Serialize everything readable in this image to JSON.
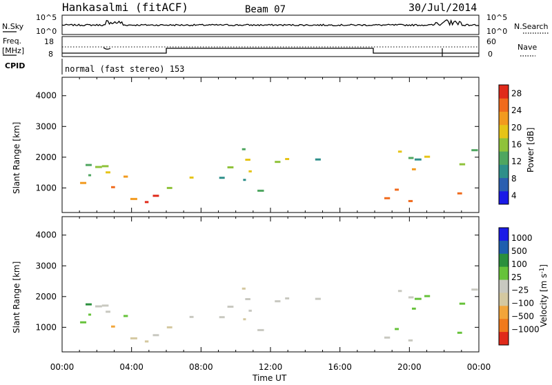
{
  "header": {
    "station": "Hankasalmi (fitACF)",
    "beam": "Beam 07",
    "date": "30/Jul/2014"
  },
  "colors": {
    "power_scale": [
      "#1a1ae6",
      "#2b5fb0",
      "#2e8f8a",
      "#4fa660",
      "#8fc23a",
      "#e6c417",
      "#f29a1e",
      "#f06a1c",
      "#e02a1a"
    ],
    "velocity_scale": [
      "#1a1ae6",
      "#1e5fae",
      "#2a8f3c",
      "#66c23a",
      "#c8c8c0",
      "#d4c8a0",
      "#f2a53a",
      "#f07a1c",
      "#e02a1a"
    ]
  },
  "chart_data": [
    {
      "type": "line",
      "panel": "noise",
      "left_label": "N.Sky",
      "right_label": "N.Search",
      "left_ticks": [
        "10^5",
        "10^0"
      ],
      "right_ticks": [
        "10^5",
        "10^0"
      ],
      "x_range": [
        0,
        24
      ]
    },
    {
      "type": "line",
      "panel": "frequency-nave",
      "left_label_line1": "Freq.",
      "left_label_line2": "[MHz]",
      "right_label": "Nave",
      "left_ticks": [
        18,
        8
      ],
      "right_ticks": [
        60,
        0
      ],
      "x_range": [
        0,
        24
      ]
    },
    {
      "type": "table",
      "panel": "cpid",
      "label": "CPID",
      "value": "normal (fast stereo) 153"
    },
    {
      "type": "heatmap",
      "panel": "power",
      "ylabel": "Slant Range [km]",
      "yticks": [
        1000,
        2000,
        3000,
        4000
      ],
      "ylim": [
        200,
        4600
      ],
      "xlim": [
        0,
        24
      ],
      "colorbar_label": "Power [dB]",
      "colorbar_ticks": [
        4,
        8,
        12,
        16,
        20,
        24,
        28
      ],
      "colorbar_range": [
        2,
        30
      ]
    },
    {
      "type": "heatmap",
      "panel": "velocity",
      "ylabel": "Slant Range [km]",
      "yticks": [
        1000,
        2000,
        3000,
        4000
      ],
      "ylim": [
        200,
        4600
      ],
      "xlim": [
        0,
        24
      ],
      "xlabel": "Time UT",
      "xticks": [
        "00:00",
        "04:00",
        "08:00",
        "12:00",
        "16:00",
        "20:00",
        "00:00"
      ],
      "colorbar_label": "Velocity [m s",
      "colorbar_label_sup": "-1",
      "colorbar_label_close": "]",
      "colorbar_ticks": [
        "1000",
        "500",
        "100",
        "25",
        "−25",
        "−100",
        "−500",
        "−1000"
      ]
    }
  ]
}
